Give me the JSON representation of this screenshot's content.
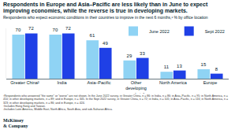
{
  "chart_data": {
    "type": "bar",
    "title": "Respondents in Europe and Asia–Pacific are less likely than in June to expect improving economies, while the reverse is true in developing markets.",
    "subtitle": "Respondents who expect economic conditions in their countries to improve in the next 6 months,¹ % by office location",
    "categories": [
      "Greater China²",
      "India",
      "Asia–Pacific",
      "Other developing markets³",
      "North America",
      "Europe"
    ],
    "series": [
      {
        "name": "June 2022",
        "color": "#8fd3f4",
        "values": [
          70,
          70,
          61,
          29,
          11,
          15
        ]
      },
      {
        "name": "Sept 2022",
        "color": "#1f40e6",
        "values": [
          72,
          72,
          49,
          33,
          13,
          8
        ]
      }
    ],
    "ylim": [
      0,
      80
    ],
    "data_labels": true,
    "legend": "top right",
    "tick_labels": "x",
    "grid": false,
    "footnotes": [
      "¹Respondents who answered \"the same\" or \"worse\" are not shown. In the June 2022 survey, in Greater China, n = 86; in India, n = 86; in Asia–Pacific, n = 95; in North America, n = 410; in other developing markets, n = 89; and in Europe, n = 345. In the Sept 2022 survey, in Greater China, n = 72; in India, n = 105; in Asia–Pacific, n = 116; in North America, n = 323; in other developing markets, n = 86; and in Europe, n = 424.",
      "²Includes Hong Kong and Taiwan.",
      "³Includes Latin America, Middle East, North Africa, South Asia, and sub-Saharan Africa."
    ],
    "source": "McKinsey\n& Company"
  }
}
